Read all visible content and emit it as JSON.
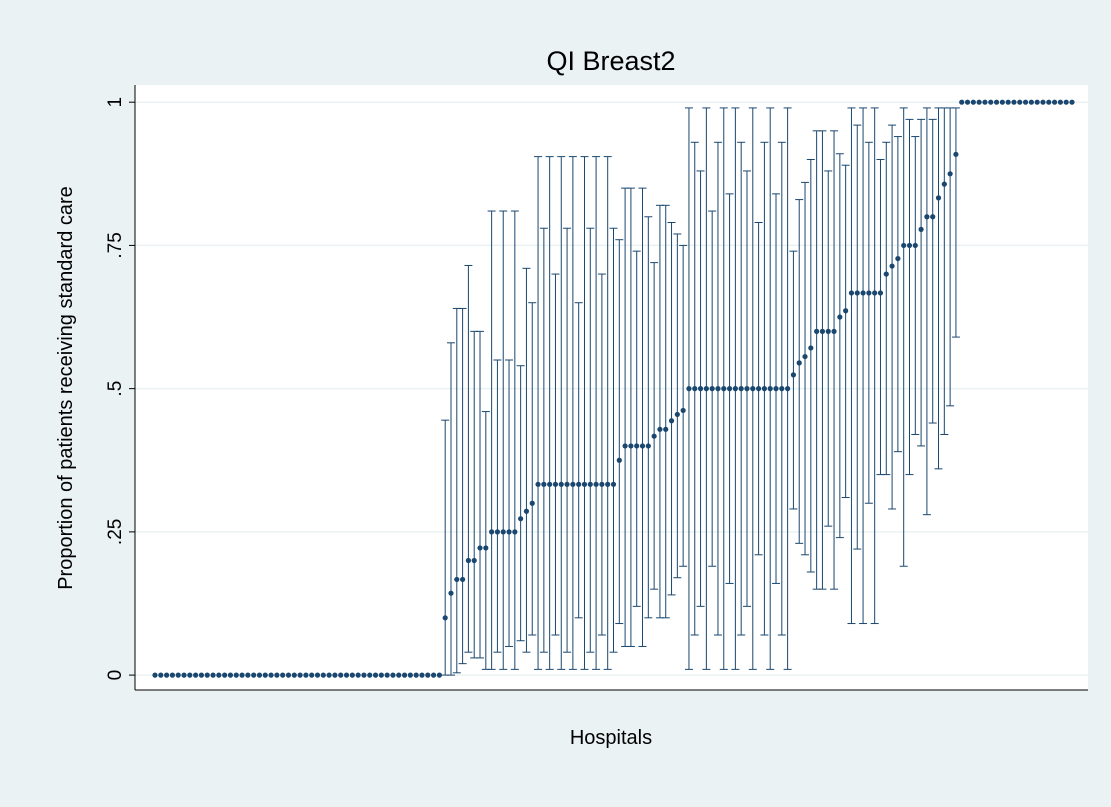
{
  "chart_data": {
    "type": "errorbar",
    "title": "QI Breast2",
    "xlabel": "Hospitals",
    "ylabel": "Proportion of patients receiving standard care",
    "color": "#1a476f",
    "grid": true,
    "ylim": [
      -0.026,
      1.03
    ],
    "yticks": [
      0,
      {
        "value": 0.25,
        "label": ".25"
      },
      {
        "value": 0.5,
        "label": ".5"
      },
      {
        "value": 0.75,
        "label": ".75"
      },
      1
    ],
    "values": [
      0,
      0,
      0,
      0,
      0,
      0,
      0,
      0,
      0,
      0,
      0,
      0,
      0,
      0,
      0,
      0,
      0,
      0,
      0,
      0,
      0,
      0,
      0,
      0,
      0,
      0,
      0,
      0,
      0,
      0,
      0,
      0,
      0,
      0,
      0,
      0,
      0,
      0,
      0,
      0,
      0,
      0,
      0,
      0,
      0,
      0,
      0,
      0,
      0,
      0,
      0.1,
      0.143,
      0.167,
      0.167,
      0.2,
      0.2,
      0.222,
      0.222,
      0.25,
      0.25,
      0.25,
      0.25,
      0.25,
      0.273,
      0.286,
      0.3,
      0.333,
      0.333,
      0.333,
      0.333,
      0.333,
      0.333,
      0.333,
      0.333,
      0.333,
      0.333,
      0.333,
      0.333,
      0.333,
      0.333,
      0.375,
      0.4,
      0.4,
      0.4,
      0.4,
      0.4,
      0.417,
      0.429,
      0.429,
      0.444,
      0.455,
      0.462,
      0.5,
      0.5,
      0.5,
      0.5,
      0.5,
      0.5,
      0.5,
      0.5,
      0.5,
      0.5,
      0.5,
      0.5,
      0.5,
      0.5,
      0.5,
      0.5,
      0.5,
      0.5,
      0.524,
      0.545,
      0.556,
      0.571,
      0.6,
      0.6,
      0.6,
      0.6,
      0.625,
      0.636,
      0.667,
      0.667,
      0.667,
      0.667,
      0.667,
      0.667,
      0.7,
      0.714,
      0.727,
      0.75,
      0.75,
      0.75,
      0.778,
      0.8,
      0.8,
      0.833,
      0.857,
      0.875,
      0.909,
      1,
      1,
      1,
      1,
      1,
      1,
      1,
      1,
      1,
      1,
      1,
      1,
      1,
      1,
      1,
      1,
      1,
      1,
      1,
      1
    ],
    "lower": [
      null,
      null,
      null,
      null,
      null,
      null,
      null,
      null,
      null,
      null,
      null,
      null,
      null,
      null,
      null,
      null,
      null,
      null,
      null,
      null,
      null,
      null,
      null,
      null,
      null,
      null,
      null,
      null,
      null,
      null,
      null,
      null,
      null,
      null,
      null,
      null,
      null,
      null,
      null,
      null,
      null,
      null,
      null,
      null,
      null,
      null,
      null,
      null,
      null,
      null,
      0,
      0,
      0.004,
      0.02,
      0.04,
      0.03,
      0.03,
      0.01,
      0.01,
      0.04,
      0.01,
      0.05,
      0.01,
      0.06,
      0.04,
      0.07,
      0.01,
      0.04,
      0.01,
      0.07,
      0.01,
      0.04,
      0.01,
      0.1,
      0.01,
      0.04,
      0.01,
      0.07,
      0.01,
      0.04,
      0.09,
      0.05,
      0.05,
      0.12,
      0.05,
      0.1,
      0.15,
      0.1,
      0.1,
      0.14,
      0.17,
      0.19,
      0.01,
      0.07,
      0.12,
      0.01,
      0.19,
      0.07,
      0.01,
      0.16,
      0.01,
      0.07,
      0.12,
      0.01,
      0.21,
      0.07,
      0.01,
      0.16,
      0.07,
      0.01,
      0.29,
      0.23,
      0.21,
      0.18,
      0.15,
      0.15,
      0.26,
      0.15,
      0.24,
      0.31,
      0.09,
      0.22,
      0.09,
      0.3,
      0.09,
      0.35,
      0.35,
      0.29,
      0.39,
      0.19,
      0.35,
      0.42,
      0.4,
      0.28,
      0.44,
      0.36,
      0.42,
      0.47,
      0.59,
      null,
      null,
      null,
      null,
      null,
      null,
      null,
      null,
      null,
      null,
      null,
      null,
      null,
      null,
      null,
      null,
      null,
      null,
      null,
      null
    ],
    "upper": [
      null,
      null,
      null,
      null,
      null,
      null,
      null,
      null,
      null,
      null,
      null,
      null,
      null,
      null,
      null,
      null,
      null,
      null,
      null,
      null,
      null,
      null,
      null,
      null,
      null,
      null,
      null,
      null,
      null,
      null,
      null,
      null,
      null,
      null,
      null,
      null,
      null,
      null,
      null,
      null,
      null,
      null,
      null,
      null,
      null,
      null,
      null,
      null,
      null,
      null,
      0.445,
      0.58,
      0.64,
      0.64,
      0.715,
      0.6,
      0.6,
      0.46,
      0.81,
      0.55,
      0.81,
      0.55,
      0.81,
      0.54,
      0.71,
      0.65,
      0.905,
      0.78,
      0.905,
      0.7,
      0.905,
      0.78,
      0.905,
      0.65,
      0.905,
      0.78,
      0.905,
      0.7,
      0.905,
      0.78,
      0.76,
      0.85,
      0.85,
      0.74,
      0.85,
      0.8,
      0.72,
      0.82,
      0.82,
      0.79,
      0.77,
      0.75,
      0.99,
      0.93,
      0.88,
      0.99,
      0.81,
      0.93,
      0.99,
      0.84,
      0.99,
      0.93,
      0.88,
      0.99,
      0.79,
      0.93,
      0.99,
      0.84,
      0.93,
      0.99,
      0.74,
      0.83,
      0.86,
      0.9,
      0.95,
      0.95,
      0.88,
      0.95,
      0.91,
      0.89,
      0.99,
      0.96,
      0.99,
      0.93,
      0.99,
      0.9,
      0.93,
      0.96,
      0.94,
      0.99,
      0.97,
      0.94,
      0.97,
      0.99,
      0.97,
      0.99,
      0.99,
      0.99,
      0.99,
      null,
      null,
      null,
      null,
      null,
      null,
      null,
      null,
      null,
      null,
      null,
      null,
      null,
      null,
      null,
      null,
      null,
      null,
      null,
      null
    ]
  }
}
